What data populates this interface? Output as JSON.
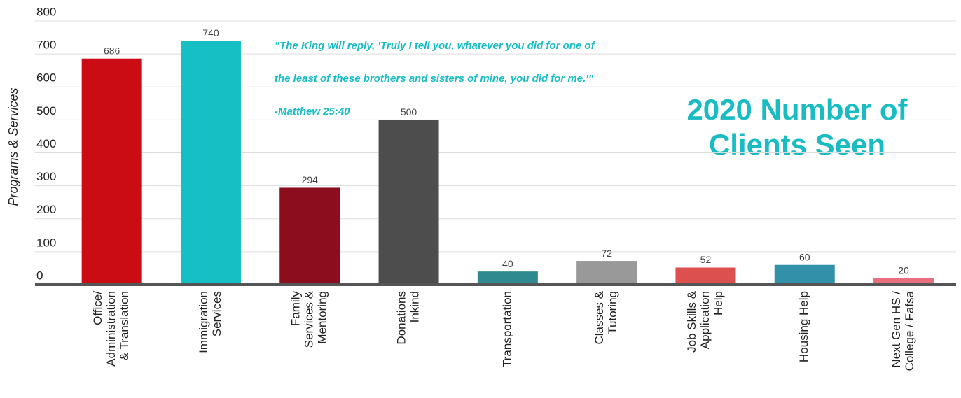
{
  "chart_data": {
    "type": "bar",
    "title": [
      "2020  Number of",
      "Clients Seen"
    ],
    "annotation": [
      "\"The King will reply, 'Truly I tell you, whatever you did for one of",
      "the least of these brothers and sisters of mine, you did for me.'\"",
      "-Matthew 25:40"
    ],
    "ylabel": "Programs & Services",
    "categories": [
      [
        "Office/",
        "Administration",
        "& Translation"
      ],
      [
        "Immigration",
        "Services"
      ],
      [
        "Family",
        "Services &",
        "Mentoring"
      ],
      [
        "Donations",
        "Inkind"
      ],
      [
        "Transportation"
      ],
      [
        "Classes &",
        "Tutoring"
      ],
      [
        "Job Skills &",
        "Application",
        "Help"
      ],
      [
        "Housing Help"
      ],
      [
        "Next Gen HS /",
        "College / Fafsa"
      ]
    ],
    "values": [
      686,
      740,
      294,
      500,
      40,
      72,
      52,
      60,
      20
    ],
    "colors": [
      "#cc0c14",
      "#16bfc4",
      "#8c0e1e",
      "#4d4d4d",
      "#2e8a8e",
      "#999999",
      "#dd5050",
      "#3290a8",
      "#e8707e"
    ],
    "ylim": [
      0,
      800
    ],
    "yticks": [
      0,
      100,
      200,
      300,
      400,
      500,
      600,
      700,
      800
    ],
    "grid": true
  }
}
